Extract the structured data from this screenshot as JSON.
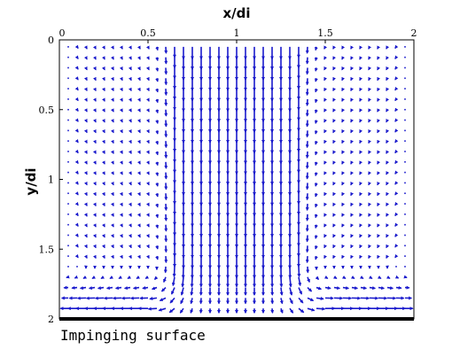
{
  "chart_data": {
    "type": "quiver",
    "xlabel": "x/di",
    "ylabel": "y/di",
    "xlim": [
      0,
      2
    ],
    "ylim": [
      0,
      2
    ],
    "y_axis_inverted": true,
    "x_axis_position": "top",
    "x_ticks": [
      0,
      0.5,
      1,
      1.5,
      2
    ],
    "x_tick_labels": [
      "0",
      "0.5",
      "1",
      "1.5",
      "2"
    ],
    "y_ticks": [
      0,
      0.5,
      1,
      1.5,
      2
    ],
    "y_tick_labels": [
      "0",
      "0.5",
      "1",
      "1.5",
      "2"
    ],
    "grid": false,
    "arrow_color": "#1a1acc",
    "wall_color": "#000000",
    "annotation": "Impinging surface",
    "field": {
      "x_start": 0.05,
      "x_step": 0.05,
      "x_count": 39,
      "y_start": 0.05,
      "y_step": 0.075,
      "y_count": 26,
      "jet_center_x": 1.0,
      "jet_half_width": 0.45,
      "description": "downward jet between x≈0.55 and x≈1.45 impinging on surface at y=2, spreading outward along the wall"
    }
  },
  "surface_label": "Impinging surface"
}
